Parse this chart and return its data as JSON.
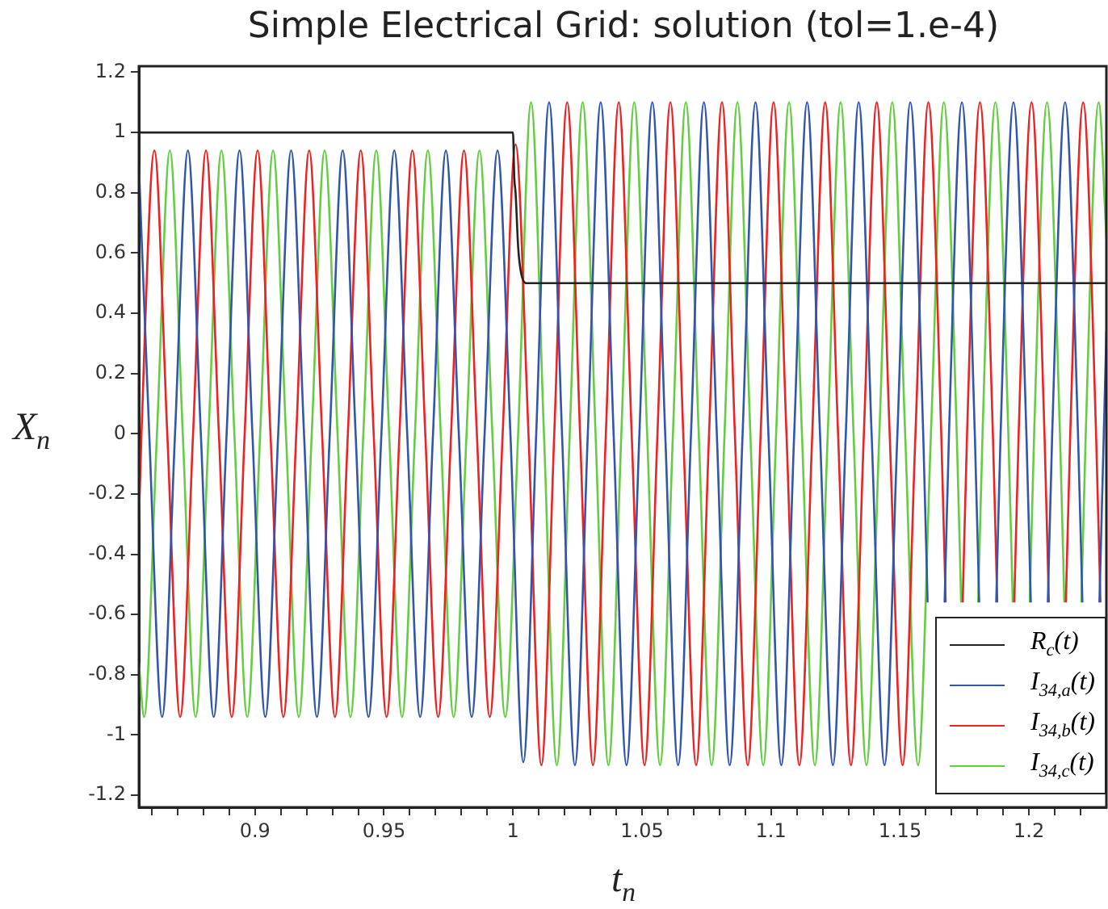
{
  "chart_data": {
    "type": "line",
    "title": "Simple Electrical Grid: solution (tol=1.e-4)",
    "xlabel": "t$_{n}$",
    "ylabel": "X$_{n}$",
    "xlim": [
      0.855,
      1.23
    ],
    "ylim": [
      -1.24,
      1.22
    ],
    "xticks": [
      {
        "value": 0.86,
        "label": null
      },
      {
        "value": 0.87,
        "label": null
      },
      {
        "value": 0.88,
        "label": null
      },
      {
        "value": 0.89,
        "label": null
      },
      0.9,
      {
        "value": 0.91,
        "label": null
      },
      {
        "value": 0.92,
        "label": null
      },
      {
        "value": 0.93,
        "label": null
      },
      {
        "value": 0.94,
        "label": null
      },
      0.95,
      {
        "value": 0.96,
        "label": null
      },
      {
        "value": 0.97,
        "label": null
      },
      {
        "value": 0.98,
        "label": null
      },
      {
        "value": 0.99,
        "label": null
      },
      1,
      {
        "value": 1.01,
        "label": null
      },
      {
        "value": 1.02,
        "label": null
      },
      {
        "value": 1.03,
        "label": null
      },
      {
        "value": 1.04,
        "label": null
      },
      1.05,
      {
        "value": 1.06,
        "label": null
      },
      {
        "value": 1.07,
        "label": null
      },
      {
        "value": 1.08,
        "label": null
      },
      {
        "value": 1.09,
        "label": null
      },
      1.1,
      {
        "value": 1.11,
        "label": null
      },
      {
        "value": 1.12,
        "label": null
      },
      {
        "value": 1.13,
        "label": null
      },
      {
        "value": 1.14,
        "label": null
      },
      1.15,
      {
        "value": 1.16,
        "label": null
      },
      {
        "value": 1.17,
        "label": null
      },
      {
        "value": 1.18,
        "label": null
      },
      {
        "value": 1.19,
        "label": null
      },
      1.2,
      {
        "value": 1.21,
        "label": null
      },
      {
        "value": 1.22,
        "label": null
      }
    ],
    "yticks": [
      -1.2,
      -1,
      -0.8,
      -0.6,
      -0.4,
      -0.2,
      0,
      0.2,
      0.4,
      0.6,
      0.8,
      1,
      1.2
    ],
    "grid": false,
    "legend": "bottom right",
    "marker": "none",
    "line_style": "solid",
    "series": [
      {
        "name": "R$_{c}$(t)",
        "color": "#222222",
        "x": [
          0.855,
          1.0,
          1.0005,
          1.001,
          1.002,
          1.003,
          1.005,
          1.23
        ],
        "values": [
          1,
          1,
          0.85,
          0.8,
          0.62,
          0.54,
          0.5,
          0.5
        ]
      },
      {
        "name": "I$_{34,a}$(t)",
        "color": "#3355aa",
        "x": [
          0.855,
          0.859,
          0.864,
          0.869,
          0.874,
          0.879,
          0.884,
          0.889,
          0.894,
          0.899,
          0.904,
          0.909,
          0.914,
          0.919,
          0.924,
          0.929,
          0.934,
          0.939,
          0.944,
          0.949,
          0.954,
          0.959,
          0.964,
          0.969,
          0.974,
          0.979,
          0.984,
          0.989,
          0.994,
          0.999,
          1.004,
          1.009,
          1.014,
          1.019,
          1.024,
          1.029,
          1.034,
          1.039,
          1.044,
          1.049,
          1.054,
          1.059,
          1.064,
          1.069,
          1.074,
          1.079,
          1.084,
          1.089,
          1.094,
          1.099,
          1.104,
          1.109,
          1.114,
          1.119,
          1.124,
          1.129,
          1.134,
          1.139,
          1.144,
          1.149,
          1.154,
          1.159,
          1.1607,
          1.164,
          1.1673,
          1.169,
          1.174,
          1.179,
          1.1807,
          1.184,
          1.1873,
          1.189,
          1.194,
          1.199,
          1.2007,
          1.204,
          1.2073,
          1.209,
          1.214,
          1.219,
          1.2207,
          1.224,
          1.2273,
          1.229,
          1.23
        ],
        "values": [
          0.89,
          0,
          -0.94,
          0,
          0.94,
          0,
          -0.94,
          0,
          0.94,
          0,
          -0.94,
          0,
          0.94,
          0,
          -0.94,
          0,
          0.94,
          0,
          -0.94,
          0,
          0.94,
          0,
          -0.94,
          0,
          0.94,
          0,
          -0.94,
          0,
          0.94,
          0,
          -1.09,
          0,
          1.1,
          0,
          -1.1,
          0,
          1.1,
          0,
          -1.1,
          0,
          1.1,
          0,
          -1.1,
          0,
          1.1,
          0,
          -1.1,
          0,
          1.1,
          0,
          -1.1,
          0,
          1.1,
          0,
          -1.1,
          0,
          1.1,
          0,
          -1.1,
          0,
          1.1,
          0,
          -0.56,
          null,
          -0.56,
          0,
          1.1,
          0,
          -0.56,
          null,
          -0.56,
          0,
          1.1,
          0,
          -0.56,
          null,
          -0.56,
          0,
          1.1,
          0,
          -0.56,
          null,
          -0.56,
          0,
          0.34
        ]
      },
      {
        "name": "I$_{34,b}$(t)",
        "color": "#ee2222",
        "x": [
          0.855,
          0.856,
          0.861,
          0.866,
          0.871,
          0.876,
          0.881,
          0.886,
          0.891,
          0.896,
          0.901,
          0.906,
          0.911,
          0.916,
          0.921,
          0.926,
          0.931,
          0.936,
          0.941,
          0.946,
          0.951,
          0.956,
          0.961,
          0.966,
          0.971,
          0.976,
          0.981,
          0.986,
          0.991,
          0.996,
          1.001,
          1.006,
          1.011,
          1.016,
          1.021,
          1.026,
          1.031,
          1.036,
          1.041,
          1.046,
          1.051,
          1.056,
          1.061,
          1.066,
          1.071,
          1.076,
          1.081,
          1.086,
          1.091,
          1.096,
          1.101,
          1.106,
          1.111,
          1.116,
          1.121,
          1.126,
          1.131,
          1.136,
          1.141,
          1.146,
          1.151,
          1.156,
          1.161,
          1.166,
          1.1677,
          1.171,
          1.1743,
          1.176,
          1.181,
          1.186,
          1.1877,
          1.191,
          1.1943,
          1.196,
          1.201,
          1.206,
          1.2077,
          1.211,
          1.2143,
          1.216,
          1.221,
          1.226,
          1.2277
        ],
        "values": [
          -0.29,
          0,
          0.94,
          0,
          -0.94,
          0,
          0.94,
          0,
          -0.94,
          0,
          0.94,
          0,
          -0.94,
          0,
          0.94,
          0,
          -0.94,
          0,
          0.94,
          0,
          -0.94,
          0,
          0.94,
          0,
          -0.94,
          0,
          0.94,
          0,
          -0.94,
          0,
          0.96,
          0,
          -1.1,
          0,
          1.1,
          0,
          -1.1,
          0,
          1.1,
          0,
          -1.1,
          0,
          1.1,
          0,
          -1.1,
          0,
          1.1,
          0,
          -1.1,
          0,
          1.1,
          0,
          -1.1,
          0,
          1.1,
          0,
          -1.1,
          0,
          1.1,
          0,
          -1.1,
          0,
          1.1,
          0,
          -0.56,
          null,
          -0.56,
          0,
          1.1,
          0,
          -0.56,
          null,
          -0.56,
          0,
          1.1,
          0,
          -0.56,
          null,
          -0.56,
          0,
          1.1,
          0,
          -0.56
        ]
      },
      {
        "name": "I$_{34,c}$(t)",
        "color": "#66cc44",
        "x": [
          0.855,
          0.857,
          0.862,
          0.867,
          0.872,
          0.877,
          0.882,
          0.887,
          0.892,
          0.897,
          0.902,
          0.907,
          0.912,
          0.917,
          0.922,
          0.927,
          0.932,
          0.937,
          0.942,
          0.947,
          0.952,
          0.957,
          0.962,
          0.967,
          0.972,
          0.977,
          0.982,
          0.987,
          0.992,
          0.997,
          1.002,
          1.007,
          1.012,
          1.017,
          1.022,
          1.027,
          1.032,
          1.037,
          1.042,
          1.047,
          1.052,
          1.057,
          1.062,
          1.067,
          1.072,
          1.077,
          1.082,
          1.087,
          1.092,
          1.097,
          1.102,
          1.107,
          1.112,
          1.117,
          1.122,
          1.127,
          1.132,
          1.137,
          1.142,
          1.147,
          1.152,
          1.157,
          1.162,
          1.167,
          1.172,
          1.1737,
          1.177,
          1.1803,
          1.182,
          1.187,
          1.192,
          1.1937,
          1.197,
          1.2003,
          1.202,
          1.207,
          1.212,
          1.2137,
          1.217,
          1.2203,
          1.222,
          1.227,
          1.23
        ],
        "values": [
          -0.76,
          -0.94,
          0,
          0.94,
          0,
          -0.94,
          0,
          0.94,
          0,
          -0.94,
          0,
          0.94,
          0,
          -0.94,
          0,
          0.94,
          0,
          -0.94,
          0,
          0.94,
          0,
          -0.94,
          0,
          0.94,
          0,
          -0.94,
          0,
          0.94,
          0,
          -0.94,
          0,
          1.1,
          0,
          -1.1,
          0,
          1.1,
          0,
          -1.1,
          0,
          1.1,
          0,
          -1.1,
          0,
          1.1,
          0,
          -1.1,
          0,
          1.1,
          0,
          -1.1,
          0,
          1.1,
          0,
          -1.1,
          0,
          1.1,
          0,
          -1.1,
          0,
          1.1,
          0,
          -1.1,
          0,
          1.1,
          0,
          -0.56,
          null,
          -0.56,
          0,
          1.1,
          0,
          -0.56,
          null,
          -0.56,
          0,
          1.1,
          0,
          -0.56,
          null,
          -0.56,
          0,
          1.1,
          0.65
        ]
      }
    ]
  }
}
